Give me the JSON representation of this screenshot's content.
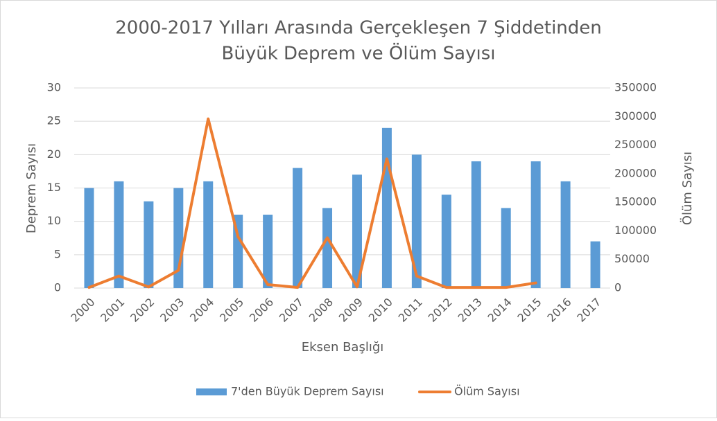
{
  "chart_data": {
    "type": "combo",
    "title": "2000-2017 Yılları Arasında Gerçekleşen 7 Şiddetinden",
    "subtitle": "Büyük Deprem ve Ölüm Sayısı",
    "xlabel": "Eksen Başlığı",
    "ylabel": "Deprem Sayısı",
    "y2label": "Ölüm Sayısı",
    "categories": [
      "2000",
      "2001",
      "2002",
      "2003",
      "2004",
      "2005",
      "2006",
      "2007",
      "2008",
      "2009",
      "2010",
      "2011",
      "2012",
      "2013",
      "2014",
      "2015",
      "2016",
      "2017"
    ],
    "series": [
      {
        "name": "7'den Büyük Deprem Sayısı",
        "type": "bar",
        "color": "#5b9bd5",
        "values": [
          15,
          16,
          13,
          15,
          16,
          11,
          11,
          18,
          12,
          17,
          24,
          20,
          14,
          19,
          12,
          19,
          16,
          7
        ]
      },
      {
        "name": "Ölüm Sayısı",
        "type": "line",
        "axis": "y2",
        "color": "#ed7d31",
        "values": [
          1000,
          21000,
          2000,
          31000,
          296000,
          90000,
          6000,
          1000,
          88000,
          2000,
          226000,
          21000,
          1000,
          1000,
          1000,
          9000,
          null,
          null
        ]
      }
    ],
    "ylim": [
      0,
      30
    ],
    "yticks": [
      0,
      5,
      10,
      15,
      20,
      25,
      30
    ],
    "y2lim": [
      0,
      350000
    ],
    "y2ticks": [
      0,
      50000,
      100000,
      150000,
      200000,
      250000,
      300000,
      350000
    ],
    "grid": true,
    "legend": "bottom"
  }
}
